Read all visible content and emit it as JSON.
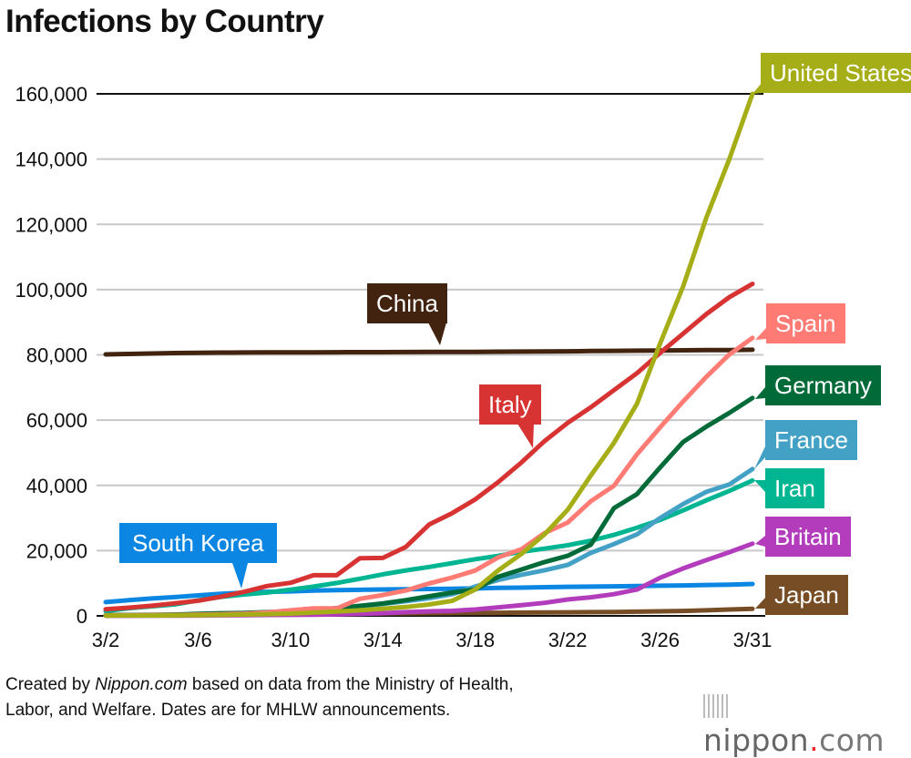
{
  "chart_data": {
    "type": "line",
    "title": "Infections by Country",
    "xlabel": "",
    "ylabel": "",
    "ylim": [
      0,
      160000
    ],
    "yticks": [
      "0",
      "20,000",
      "40,000",
      "60,000",
      "80,000",
      "100,000",
      "120,000",
      "140,000",
      "160,000"
    ],
    "ytick_values": [
      0,
      20000,
      40000,
      60000,
      80000,
      100000,
      120000,
      140000,
      160000
    ],
    "x": [
      "3/2",
      "3/3",
      "3/4",
      "3/5",
      "3/6",
      "3/7",
      "3/8",
      "3/9",
      "3/10",
      "3/11",
      "3/12",
      "3/13",
      "3/14",
      "3/15",
      "3/16",
      "3/17",
      "3/18",
      "3/19",
      "3/20",
      "3/21",
      "3/22",
      "3/23",
      "3/24",
      "3/25",
      "3/26",
      "3/27",
      "3/28",
      "3/29",
      "3/31"
    ],
    "xticks": [
      "3/2",
      "3/6",
      "3/10",
      "3/14",
      "3/18",
      "3/22",
      "3/26",
      "3/31"
    ],
    "grid": true,
    "legend": "inline labels at line ends",
    "series": [
      {
        "name": "China",
        "color": "#42230f",
        "values": [
          80151,
          80270,
          80409,
          80552,
          80651,
          80695,
          80735,
          80754,
          80778,
          80793,
          80813,
          80824,
          80844,
          80860,
          80881,
          80894,
          80928,
          80967,
          81008,
          81054,
          81093,
          81171,
          81218,
          81285,
          81340,
          81394,
          81439,
          81470,
          81554
        ]
      },
      {
        "name": "Japan",
        "color": "#774d26",
        "values": [
          254,
          284,
          317,
          349,
          408,
          455,
          488,
          530,
          568,
          620,
          675,
          716,
          780,
          814,
          833,
          873,
          914,
          950,
          1007,
          1054,
          1101,
          1140,
          1193,
          1291,
          1387,
          1499,
          1693,
          1953,
          2178
        ]
      },
      {
        "name": "South Korea",
        "color": "#0b86e2",
        "values": [
          4212,
          4812,
          5328,
          5766,
          6284,
          6767,
          7134,
          7382,
          7513,
          7755,
          7869,
          7979,
          8086,
          8162,
          8236,
          8320,
          8413,
          8565,
          8652,
          8799,
          8897,
          8961,
          9037,
          9137,
          9241,
          9332,
          9478,
          9583,
          9786
        ]
      },
      {
        "name": "Britain",
        "color": "#b23cbb",
        "values": [
          36,
          40,
          51,
          85,
          115,
          163,
          206,
          273,
          321,
          373,
          456,
          590,
          798,
          1140,
          1391,
          1543,
          1950,
          2626,
          3269,
          3983,
          5018,
          5683,
          6650,
          8077,
          11658,
          14543,
          17089,
          19522,
          22141
        ]
      },
      {
        "name": "Iran",
        "color": "#00b592",
        "values": [
          1501,
          2336,
          2922,
          3513,
          4747,
          5823,
          6566,
          7161,
          8042,
          9000,
          10075,
          11364,
          12729,
          13938,
          14991,
          16169,
          17361,
          18407,
          19644,
          20610,
          21638,
          23049,
          24811,
          27017,
          29406,
          32332,
          35408,
          38309,
          41495
        ]
      },
      {
        "name": "France",
        "color": "#43a1c6",
        "values": [
          130,
          190,
          212,
          285,
          423,
          613,
          716,
          1126,
          1412,
          1784,
          2281,
          2876,
          3661,
          4499,
          5423,
          6633,
          9000,
          11000,
          12600,
          14000,
          15600,
          19300,
          22000,
          25000,
          30000,
          34300,
          38000,
          40300,
          45000
        ]
      },
      {
        "name": "Germany",
        "color": "#006b38",
        "values": [
          150,
          190,
          260,
          400,
          640,
          800,
          900,
          1140,
          1300,
          1570,
          2370,
          3060,
          3800,
          4840,
          6010,
          7160,
          8100,
          12000,
          14200,
          16500,
          18400,
          21800,
          33000,
          37300,
          45500,
          53300,
          58000,
          62200,
          66800
        ]
      },
      {
        "name": "Spain",
        "color": "#ff7b74",
        "values": [
          120,
          165,
          222,
          259,
          400,
          500,
          673,
          1073,
          1695,
          2277,
          2277,
          5232,
          6391,
          7798,
          9942,
          11748,
          13910,
          17963,
          20410,
          25374,
          28603,
          35136,
          39885,
          49515,
          57786,
          65719,
          73235,
          80110,
          85195
        ]
      },
      {
        "name": "Italy",
        "color": "#d83333",
        "values": [
          2036,
          2502,
          3089,
          3858,
          4636,
          5883,
          7375,
          9172,
          10149,
          12462,
          12462,
          17660,
          17750,
          21157,
          27980,
          31506,
          35713,
          41035,
          47021,
          53578,
          59138,
          63927,
          69176,
          74386,
          80589,
          86498,
          92472,
          97689,
          101739
        ]
      },
      {
        "name": "United States",
        "color": "#a5ae17",
        "values": [
          70,
          100,
          120,
          160,
          220,
          320,
          430,
          540,
          700,
          1000,
          1300,
          1700,
          2200,
          2700,
          3500,
          4600,
          8100,
          14000,
          19000,
          25000,
          32500,
          43000,
          53000,
          65000,
          83500,
          101000,
          122000,
          140000,
          160000
        ]
      }
    ]
  },
  "footer": {
    "prefix": "Created by ",
    "source": "Nippon.com",
    "suffix": " based on data from the Ministry of Health,",
    "line2": "Labor, and Welfare. Dates are for MHLW announcements."
  },
  "logo": {
    "name": "nippon",
    "dot": ".",
    "tld": "com"
  }
}
